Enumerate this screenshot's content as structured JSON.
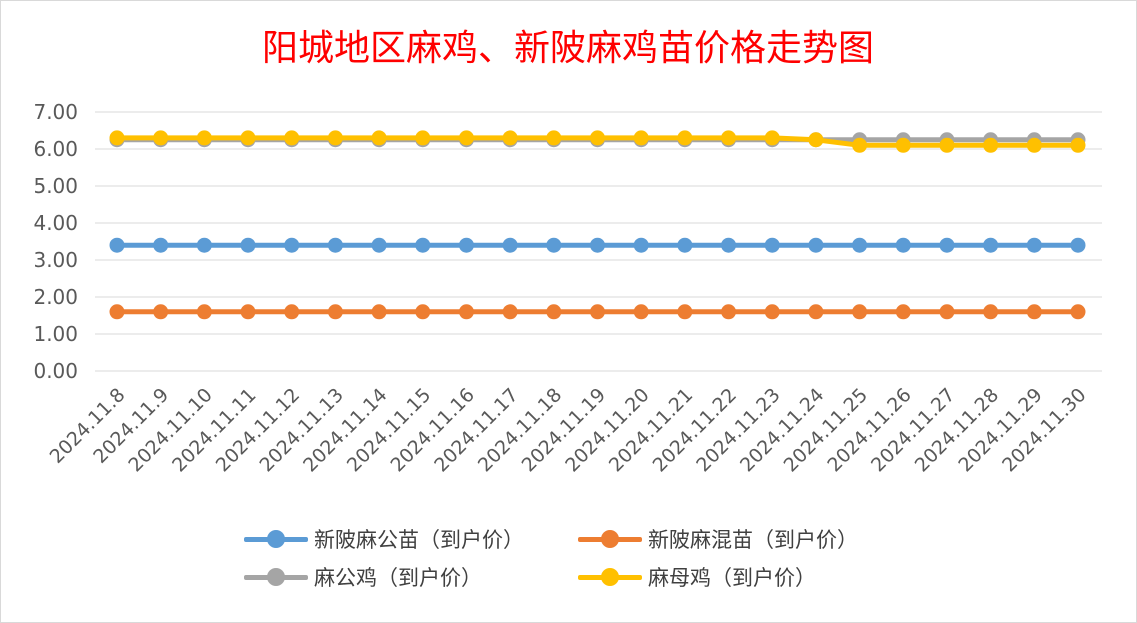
{
  "chart_data": {
    "type": "line",
    "title": "阳城地区麻鸡、新陂麻鸡苗价格走势图",
    "title_color": "#ff0000",
    "xlabel": "",
    "ylabel": "",
    "ylim": [
      0,
      7
    ],
    "yticks": [
      "0.00",
      "1.00",
      "2.00",
      "3.00",
      "4.00",
      "5.00",
      "6.00",
      "7.00"
    ],
    "grid": true,
    "legend_position": "bottom",
    "categories": [
      "2024.11.8",
      "2024.11.9",
      "2024.11.10",
      "2024.11.11",
      "2024.11.12",
      "2024.11.13",
      "2024.11.14",
      "2024.11.15",
      "2024.11.16",
      "2024.11.17",
      "2024.11.18",
      "2024.11.19",
      "2024.11.20",
      "2024.11.21",
      "2024.11.22",
      "2024.11.23",
      "2024.11.24",
      "2024.11.25",
      "2024.11.26",
      "2024.11.27",
      "2024.11.28",
      "2024.11.29",
      "2024.11.30"
    ],
    "series": [
      {
        "name": "新陂麻公苗（到户价）",
        "color": "#5b9bd5",
        "values": [
          3.4,
          3.4,
          3.4,
          3.4,
          3.4,
          3.4,
          3.4,
          3.4,
          3.4,
          3.4,
          3.4,
          3.4,
          3.4,
          3.4,
          3.4,
          3.4,
          3.4,
          3.4,
          3.4,
          3.4,
          3.4,
          3.4,
          3.4
        ]
      },
      {
        "name": "新陂麻混苗（到户价）",
        "color": "#ed7d31",
        "values": [
          1.6,
          1.6,
          1.6,
          1.6,
          1.6,
          1.6,
          1.6,
          1.6,
          1.6,
          1.6,
          1.6,
          1.6,
          1.6,
          1.6,
          1.6,
          1.6,
          1.6,
          1.6,
          1.6,
          1.6,
          1.6,
          1.6,
          1.6
        ]
      },
      {
        "name": "麻公鸡（到户价）",
        "color": "#a5a5a5",
        "values": [
          6.25,
          6.25,
          6.25,
          6.25,
          6.25,
          6.25,
          6.25,
          6.25,
          6.25,
          6.25,
          6.25,
          6.25,
          6.25,
          6.25,
          6.25,
          6.25,
          6.25,
          6.25,
          6.25,
          6.25,
          6.25,
          6.25,
          6.25
        ]
      },
      {
        "name": "麻母鸡（到户价）",
        "color": "#ffc000",
        "values": [
          6.3,
          6.3,
          6.3,
          6.3,
          6.3,
          6.3,
          6.3,
          6.3,
          6.3,
          6.3,
          6.3,
          6.3,
          6.3,
          6.3,
          6.3,
          6.3,
          6.25,
          6.1,
          6.1,
          6.1,
          6.1,
          6.1,
          6.1
        ]
      }
    ]
  }
}
